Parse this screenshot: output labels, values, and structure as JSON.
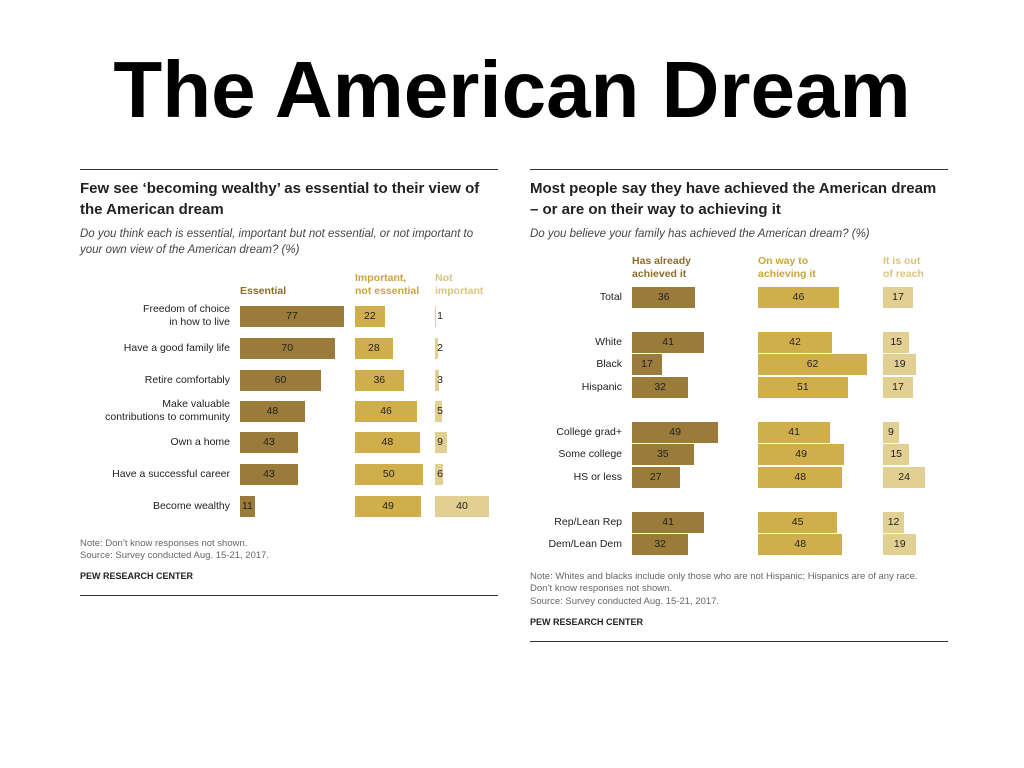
{
  "slide_title": "The American Dream",
  "brand": "PEW RESEARCH CENTER",
  "colors": {
    "dark": "#9a7b3a",
    "mid": "#cfae4b",
    "light": "#e2cf92"
  },
  "chart_data": [
    {
      "type": "bar",
      "title": "Few see ‘becoming wealthy’ as essential to their view of the American dream",
      "subtitle": "Do you think each is essential, important but not essential, or not important to your own view of the American dream? (%)",
      "categories": [
        "Freedom of choice in how to live",
        "Have a good family life",
        "Retire comfortably",
        "Make valuable contributions to community",
        "Own a home",
        "Have a successful career",
        "Become wealthy"
      ],
      "category_lines": [
        [
          "Freedom of choice",
          "in how to live"
        ],
        [
          "Have a good family life"
        ],
        [
          "Retire comfortably"
        ],
        [
          "Make valuable",
          "contributions to community"
        ],
        [
          "Own a home"
        ],
        [
          "Have a successful career"
        ],
        [
          "Become wealthy"
        ]
      ],
      "series": [
        {
          "name": "Essential",
          "name_lines": [
            "Essential"
          ],
          "values": [
            77,
            70,
            60,
            48,
            43,
            43,
            11
          ]
        },
        {
          "name": "Important, not essential",
          "name_lines": [
            "Important,",
            "not essential"
          ],
          "values": [
            22,
            28,
            36,
            46,
            48,
            50,
            49
          ]
        },
        {
          "name": "Not important",
          "name_lines": [
            "Not",
            "important"
          ],
          "values": [
            1,
            2,
            3,
            5,
            9,
            6,
            40
          ]
        }
      ],
      "unit": "%",
      "notes": [
        "Note: Don’t know responses not shown.",
        "Source: Survey conducted Aug. 15-21, 2017."
      ]
    },
    {
      "type": "bar",
      "title": "Most people say they have achieved the American dream – or are on their way to achieving it",
      "subtitle": "Do you believe your family has achieved the American dream? (%)",
      "categories": [
        "Total",
        "White",
        "Black",
        "Hispanic",
        "College grad+",
        "Some college",
        "HS or less",
        "Rep/Lean Rep",
        "Dem/Lean Dem"
      ],
      "category_groups": [
        0,
        1,
        1,
        1,
        2,
        2,
        2,
        3,
        3
      ],
      "series": [
        {
          "name": "Has already achieved it",
          "name_lines": [
            "Has already",
            "achieved it"
          ],
          "values": [
            36,
            41,
            17,
            32,
            49,
            35,
            27,
            41,
            32
          ]
        },
        {
          "name": "On way to achieving it",
          "name_lines": [
            "On way to",
            "achieving it"
          ],
          "values": [
            46,
            42,
            62,
            51,
            41,
            49,
            48,
            45,
            48
          ]
        },
        {
          "name": "It is out of reach",
          "name_lines": [
            "It is out",
            "of reach"
          ],
          "values": [
            17,
            15,
            19,
            17,
            9,
            15,
            24,
            12,
            19
          ]
        }
      ],
      "unit": "%",
      "notes": [
        "Note: Whites and blacks include only those who are not Hispanic; Hispanics are of any race.",
        "Don’t know responses not shown.",
        "Source: Survey conducted Aug. 15-21, 2017."
      ]
    }
  ]
}
